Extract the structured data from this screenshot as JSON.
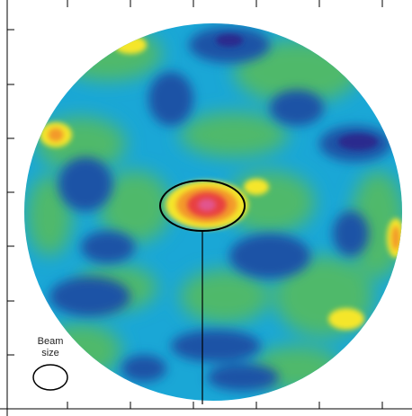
{
  "figure": {
    "beam_label_line1": "Beam",
    "beam_label_line2": "size"
  },
  "colors": {
    "background": "#1aa7d6",
    "deep_blue": "#1d52a6",
    "mid_blue": "#2c6dbf",
    "navy": "#2a2c8e",
    "cyan": "#25b8e3",
    "green": "#46b868",
    "light_green": "#7cc36a",
    "yellow": "#f5e629",
    "orange": "#f39a2b",
    "red": "#e8413f",
    "magenta": "#e2548e",
    "frame": "#000000",
    "outside": "#ffffff"
  }
}
